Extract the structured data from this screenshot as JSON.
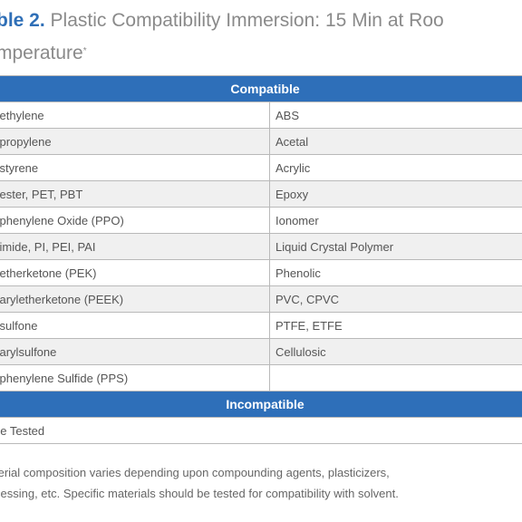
{
  "title": {
    "label": "ble 2.",
    "text": " Plastic Compatibility Immersion: 15 Min at Roo",
    "line2": "mperature",
    "mark": "*"
  },
  "table": {
    "compatible_header": "Compatible",
    "rows": [
      [
        "yethylene",
        "ABS"
      ],
      [
        "ypropylene",
        "Acetal"
      ],
      [
        "ystyrene",
        "Acrylic"
      ],
      [
        "yester, PET, PBT",
        "Epoxy"
      ],
      [
        "yphenylene Oxide (PPO)",
        "Ionomer"
      ],
      [
        "yimide, PI, PEI, PAI",
        "Liquid Crystal Polymer"
      ],
      [
        "yetherketone (PEK)",
        "Phenolic"
      ],
      [
        "yaryletherketone (PEEK)",
        "PVC, CPVC"
      ],
      [
        "ysulfone",
        "PTFE, ETFE"
      ],
      [
        "yarylsulfone",
        "Cellulosic"
      ],
      [
        "yphenylene Sulfide (PPS)",
        ""
      ]
    ],
    "incompatible_header": "Incompatible",
    "incompatible_rows": [
      [
        "ne Tested"
      ]
    ]
  },
  "footnote": {
    "line1": "terial composition varies depending upon compounding agents, plasticizers,",
    "line2": "cessing, etc. Specific materials should be tested for compatibility with solvent."
  }
}
